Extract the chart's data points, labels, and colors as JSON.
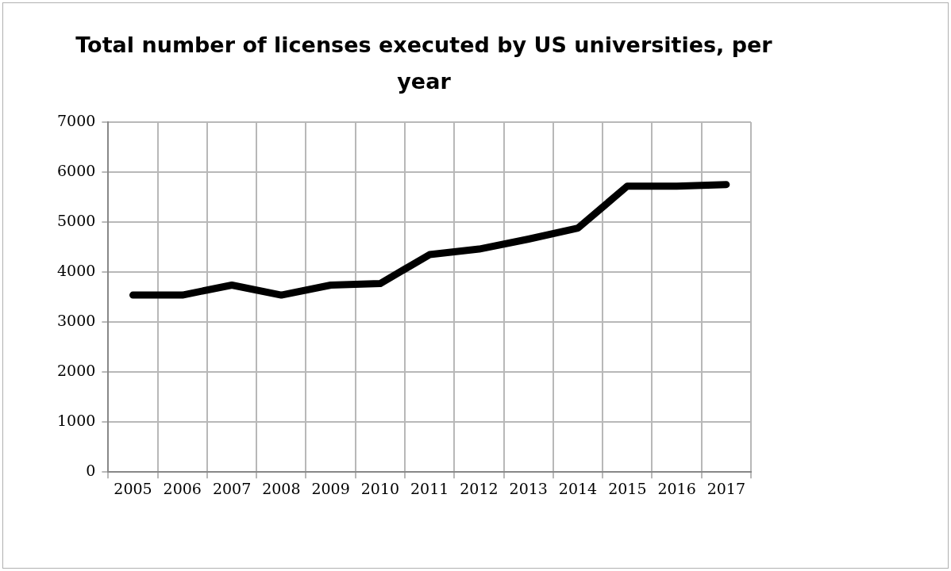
{
  "chart_data": {
    "type": "line",
    "title": "Total number of licenses executed by US universities, per year",
    "categories": [
      "2005",
      "2006",
      "2007",
      "2008",
      "2009",
      "2010",
      "2011",
      "2012",
      "2013",
      "2014",
      "2015",
      "2016",
      "2017"
    ],
    "values": [
      3540,
      3540,
      3740,
      3540,
      3740,
      3770,
      4350,
      4460,
      4660,
      4880,
      5720,
      5720,
      5750
    ],
    "color": "#000000",
    "ylim": [
      0,
      7000
    ],
    "yticks": [
      0,
      1000,
      2000,
      3000,
      4000,
      5000,
      6000,
      7000
    ],
    "grid": true,
    "marker": "none",
    "line_style": "solid"
  }
}
